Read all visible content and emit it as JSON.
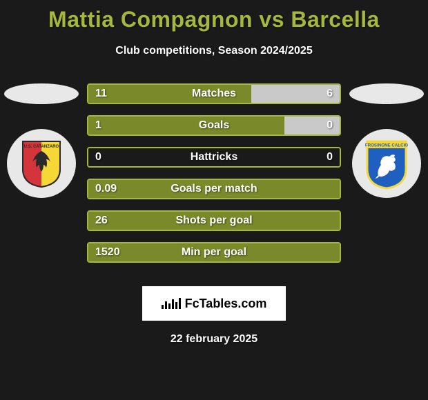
{
  "title": "Mattia Compagnon vs Barcella",
  "subtitle": "Club competitions, Season 2024/2025",
  "footer_logo": "FcTables.com",
  "footer_date": "22 february 2025",
  "colors": {
    "title": "#a6b83c",
    "left_oval": "#e8e8e8",
    "right_oval": "#e8e8e8",
    "bar_border": "#a6b83c",
    "bar_left_fill": "#7a8a2a",
    "bar_right_fill": "#c9c9c9",
    "bar_empty": "#1a1a1a",
    "background": "#1a1a1a"
  },
  "club_left": {
    "name": "Catanzaro",
    "shield_bg1": "#d4353a",
    "shield_bg2": "#f5d735",
    "eagle": "#2a2a2a"
  },
  "club_right": {
    "name": "Frosinone",
    "shield_bg": "#1f5fbf",
    "shield_border": "#f5d735",
    "lion": "#ffffff"
  },
  "bars": [
    {
      "label": "Matches",
      "left_val": "11",
      "right_val": "6",
      "left_pct": 64.7,
      "right_pct": 35.3
    },
    {
      "label": "Goals",
      "left_val": "1",
      "right_val": "0",
      "left_pct": 100,
      "right_pct": 0,
      "right_visible_pct": 22
    },
    {
      "label": "Hattricks",
      "left_val": "0",
      "right_val": "0",
      "left_pct": 0,
      "right_pct": 0
    },
    {
      "label": "Goals per match",
      "left_val": "0.09",
      "right_val": "",
      "left_pct": 100,
      "right_pct": 0
    },
    {
      "label": "Shots per goal",
      "left_val": "26",
      "right_val": "",
      "left_pct": 100,
      "right_pct": 0
    },
    {
      "label": "Min per goal",
      "left_val": "1520",
      "right_val": "",
      "left_pct": 100,
      "right_pct": 0
    }
  ],
  "bar_style": {
    "height": 30,
    "gap": 16,
    "border_width": 2,
    "border_radius": 4,
    "font_size": 16
  }
}
